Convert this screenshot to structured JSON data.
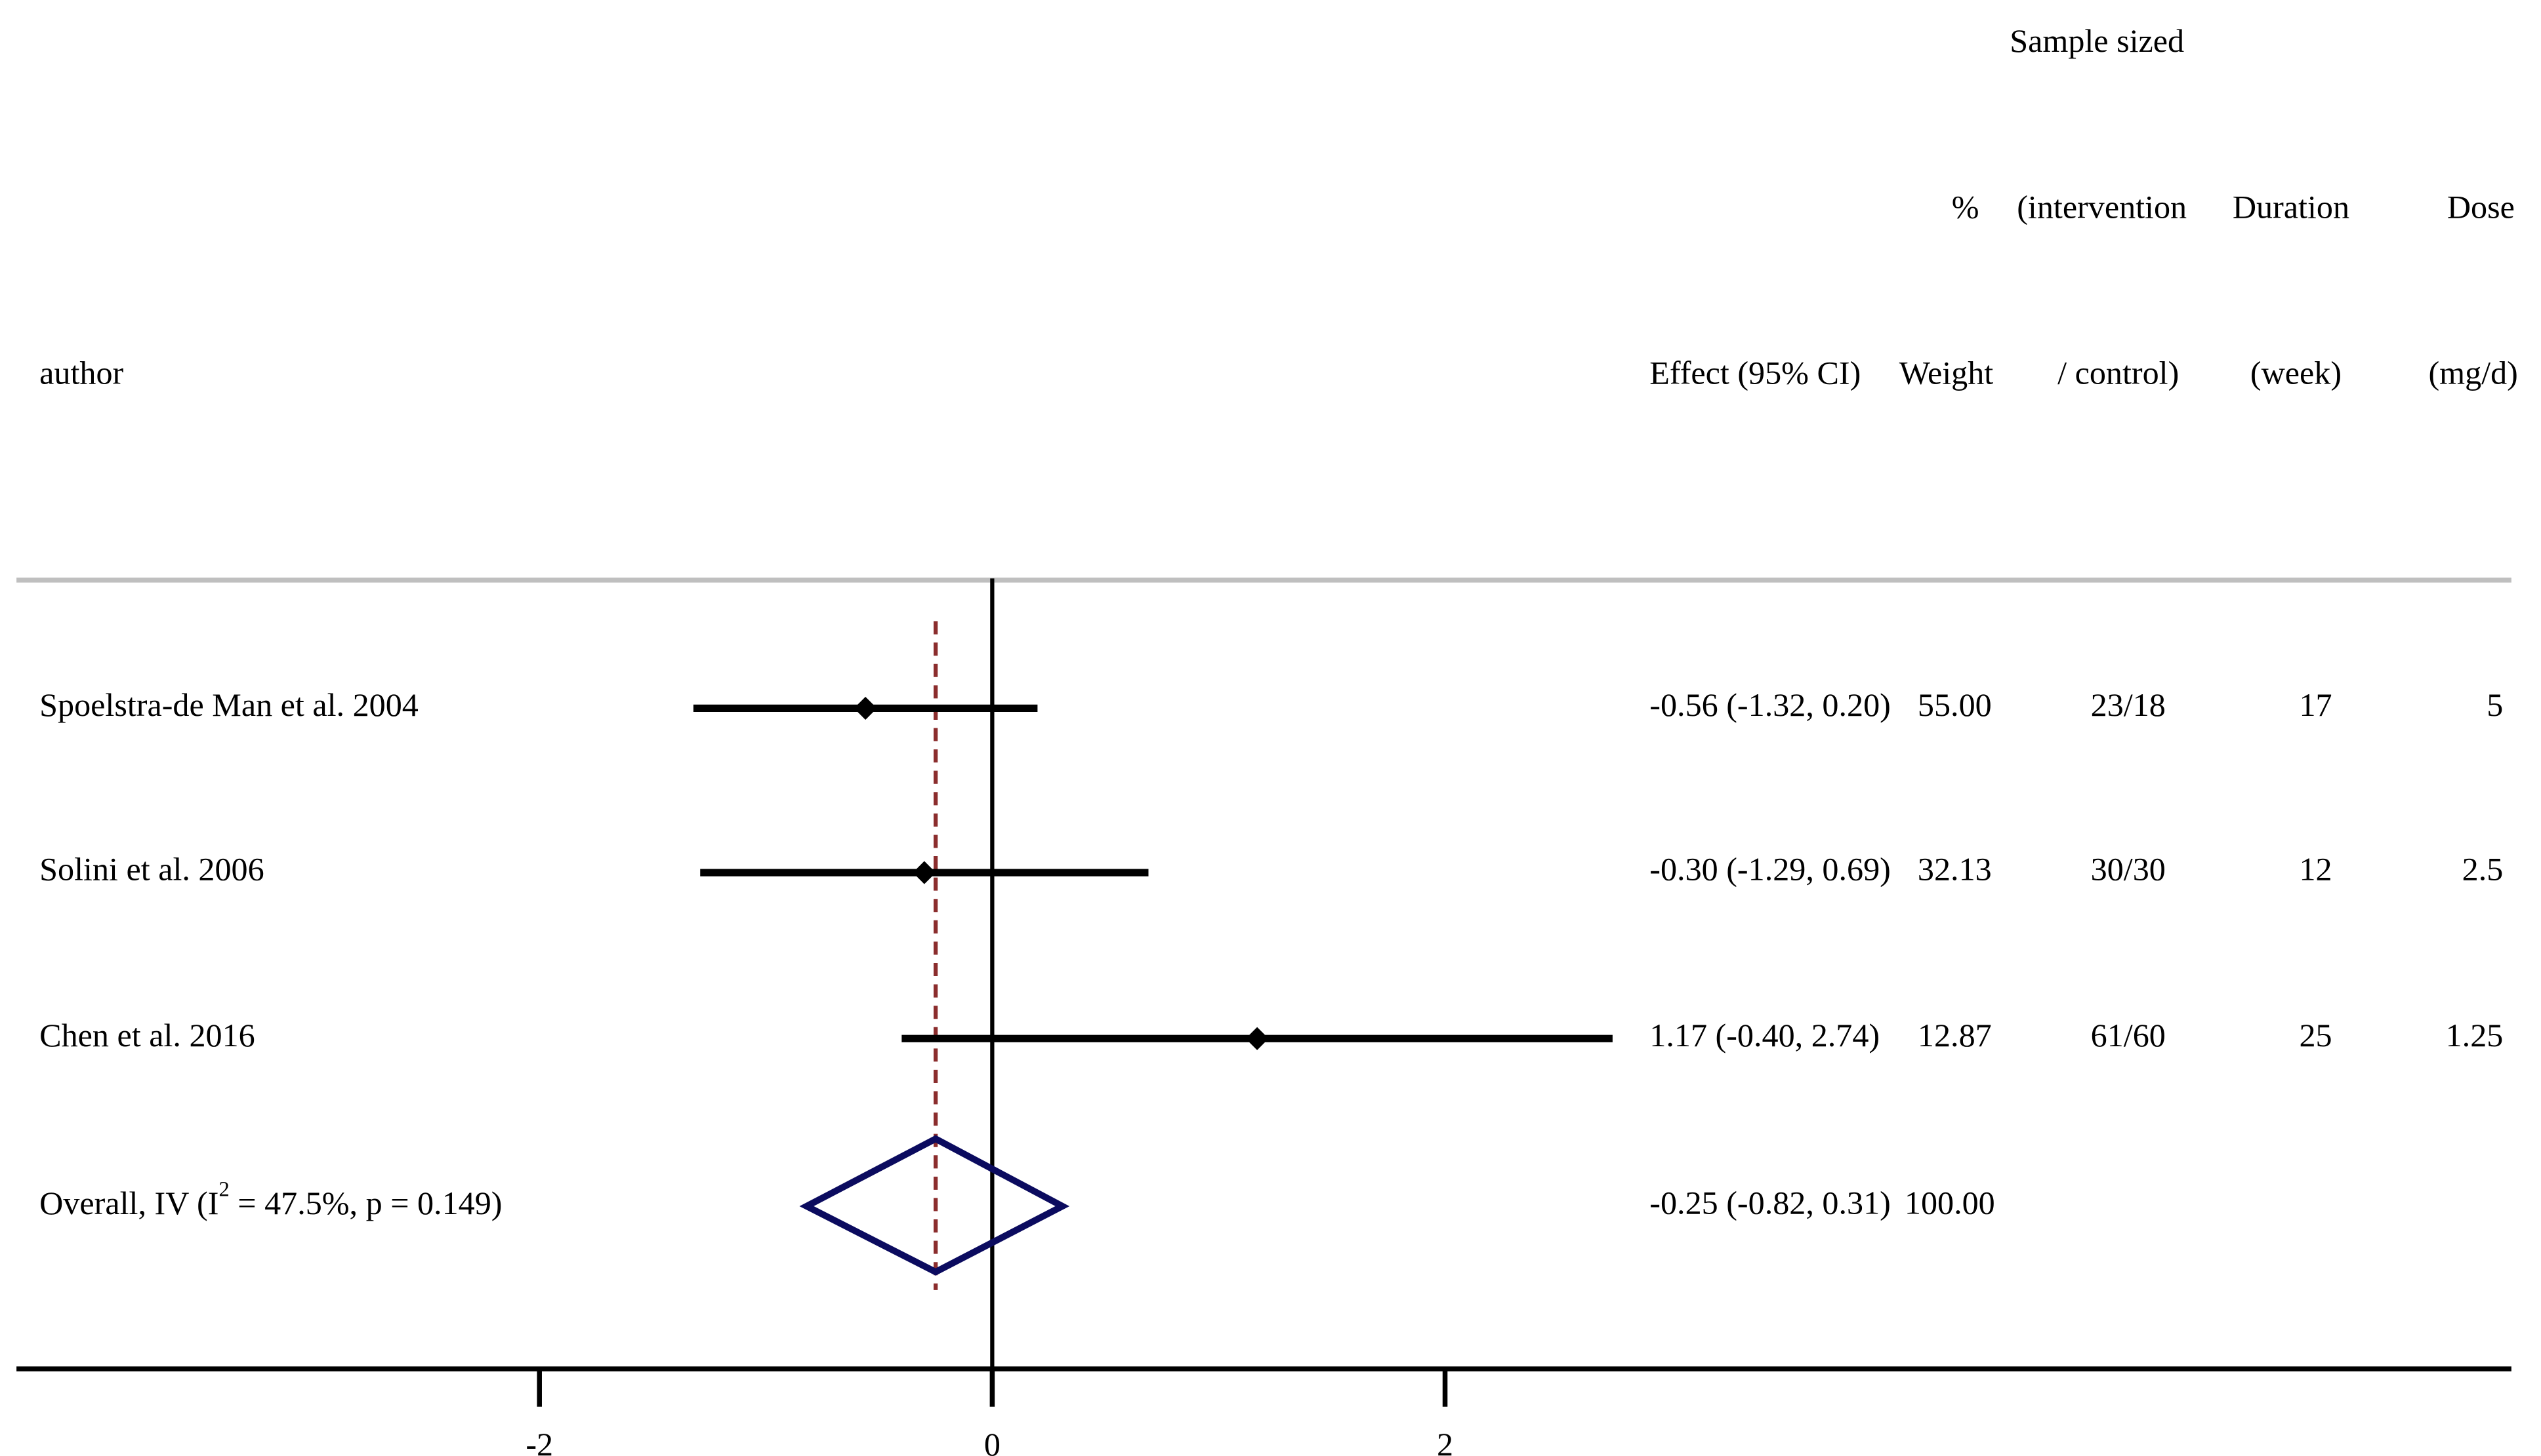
{
  "chart_data": {
    "type": "forest",
    "headers": {
      "author": "author",
      "effect": "Effect (95% CI)",
      "weight_top": "%",
      "weight": "Weight",
      "sample_top": "Sample sized",
      "sample_mid": "(intervention",
      "sample_bottom": "/ control)",
      "duration_top": "Duration",
      "duration_bottom": "(week)",
      "dose_top": "Dose",
      "dose_bottom": "(mg/d)"
    },
    "rows": [
      {
        "author": "Spoelstra-de Man  et al. 2004",
        "effect": -0.56,
        "lower": -1.32,
        "upper": 0.2,
        "effect_label": "-0.56 (-1.32, 0.20)",
        "weight": 55,
        "weight_label": "55.00",
        "sample": "23/18",
        "duration": 17,
        "dose": 5
      },
      {
        "author": "Solini et al. 2006",
        "effect": -0.3,
        "lower": -1.29,
        "upper": 0.69,
        "effect_label": "-0.30 (-1.29, 0.69)",
        "weight": 32.13,
        "weight_label": "32.13",
        "sample": "30/30",
        "duration": 12,
        "dose": 2.5
      },
      {
        "author": "Chen et al. 2016",
        "effect": 1.17,
        "lower": -0.4,
        "upper": 2.74,
        "effect_label": "1.17 (-0.40, 2.74)",
        "weight": 12.87,
        "weight_label": "12.87",
        "sample": "61/60",
        "duration": 25,
        "dose": 1.25
      }
    ],
    "overall": {
      "label_start": "Overall, IV (I",
      "label_sup": "2",
      "label_end": " = 47.5%, p = 0.149)",
      "effect": -0.25,
      "lower": -0.82,
      "upper": 0.31,
      "effect_label": "-0.25 (-0.82, 0.31)",
      "weight": 100,
      "weight_label": "100.00"
    },
    "xlim": [
      -4.31,
      6.71
    ],
    "xticks": [
      -2,
      0,
      2
    ],
    "ci_color": "#000000",
    "point_color": "#000000",
    "diamond_color": "#0b0b5f",
    "overall_line_color": "#8b2d2d"
  }
}
